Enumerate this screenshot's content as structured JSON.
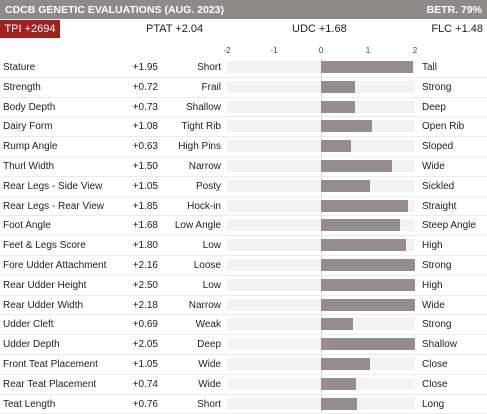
{
  "header": {
    "title": "CDCB GENETIC EVALUATIONS (AUG. 2023)",
    "reliability": "BETR. 79%"
  },
  "summary": {
    "tpi": "TPI +2694",
    "ptat": "PTAT +2.04",
    "udc": "UDC +1.68",
    "flc": "FLC +1.48"
  },
  "chart_data": {
    "type": "bar",
    "orientation": "horizontal",
    "xlim": [
      -2,
      2
    ],
    "ticks": [
      "-2",
      "-1",
      "0",
      "1",
      "2"
    ],
    "grid": false,
    "traits": [
      {
        "name": "Stature",
        "value_label": "+1.95",
        "value": 1.95,
        "low": "Short",
        "high": "Tall"
      },
      {
        "name": "Strength",
        "value_label": "+0.72",
        "value": 0.72,
        "low": "Frail",
        "high": "Strong"
      },
      {
        "name": "Body Depth",
        "value_label": "+0.73",
        "value": 0.73,
        "low": "Shallow",
        "high": "Deep"
      },
      {
        "name": "Dairy Form",
        "value_label": "+1.08",
        "value": 1.08,
        "low": "Tight Rib",
        "high": "Open Rib"
      },
      {
        "name": "Rump Angle",
        "value_label": "+0.63",
        "value": 0.63,
        "low": "High Pins",
        "high": "Sloped"
      },
      {
        "name": "Thurl Width",
        "value_label": "+1.50",
        "value": 1.5,
        "low": "Narrow",
        "high": "Wide"
      },
      {
        "name": "Rear Legs - Side View",
        "value_label": "+1.05",
        "value": 1.05,
        "low": "Posty",
        "high": "Sickled"
      },
      {
        "name": "Rear Legs - Rear View",
        "value_label": "+1.85",
        "value": 1.85,
        "low": "Hock-in",
        "high": "Straight"
      },
      {
        "name": "Foot Angle",
        "value_label": "+1.68",
        "value": 1.68,
        "low": "Low Angle",
        "high": "Steep Angle"
      },
      {
        "name": "Feet & Legs Score",
        "value_label": "+1.80",
        "value": 1.8,
        "low": "Low",
        "high": "High"
      },
      {
        "name": "Fore Udder Attachment",
        "value_label": "+2.16",
        "value": 2.16,
        "low": "Loose",
        "high": "Strong"
      },
      {
        "name": "Rear Udder Height",
        "value_label": "+2.50",
        "value": 2.5,
        "low": "Low",
        "high": "High"
      },
      {
        "name": "Rear Udder Width",
        "value_label": "+2.18",
        "value": 2.18,
        "low": "Narrow",
        "high": "Wide"
      },
      {
        "name": "Udder Cleft",
        "value_label": "+0.69",
        "value": 0.69,
        "low": "Weak",
        "high": "Strong"
      },
      {
        "name": "Udder Depth",
        "value_label": "+2.05",
        "value": 2.05,
        "low": "Deep",
        "high": "Shallow"
      },
      {
        "name": "Front Teat Placement",
        "value_label": "+1.05",
        "value": 1.05,
        "low": "Wide",
        "high": "Close"
      },
      {
        "name": "Rear Teat Placement",
        "value_label": "+0.74",
        "value": 0.74,
        "low": "Wide",
        "high": "Close"
      },
      {
        "name": "Teat Length",
        "value_label": "+0.76",
        "value": 0.76,
        "low": "Short",
        "high": "Long"
      }
    ]
  }
}
